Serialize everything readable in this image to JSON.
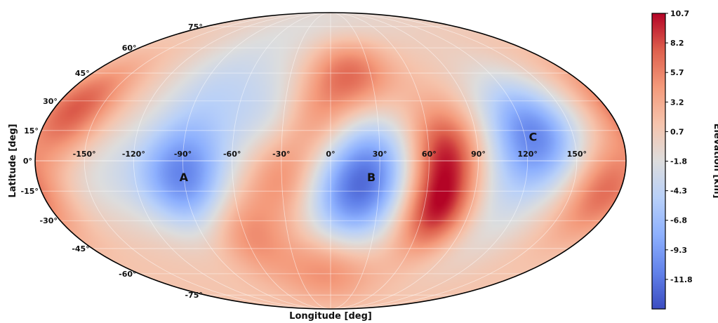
{
  "chart_data": {
    "type": "heatmap",
    "projection": "Mollweide",
    "xlabel": "Longitude [deg]",
    "ylabel": "Latitude [deg]",
    "xlim": [
      -180,
      180
    ],
    "ylim": [
      -90,
      90
    ],
    "grid": true,
    "longitude_ticks": [
      -150,
      -120,
      -90,
      -60,
      -30,
      0,
      30,
      60,
      90,
      120,
      150
    ],
    "longitude_tick_labels": [
      "-150°",
      "-120°",
      "-90°",
      "-60°",
      "-30°",
      "0°",
      "30°",
      "60°",
      "90°",
      "120°",
      "150°"
    ],
    "latitude_ticks": [
      75,
      60,
      45,
      30,
      15,
      0,
      -15,
      -30,
      -45,
      -60,
      -75
    ],
    "latitude_tick_labels": [
      "75°",
      "60°",
      "45°",
      "30°",
      "15°",
      "0°",
      "-15°",
      "-30°",
      "-45°",
      "-60°",
      "-75°"
    ],
    "colormap": "coolwarm",
    "colorbar": {
      "label": "Elevation [km]",
      "min": -14.3,
      "max": 10.7,
      "tick_values": [
        10.7,
        8.2,
        5.7,
        3.2,
        0.7,
        -1.8,
        -4.3,
        -6.8,
        -9.3,
        -11.8
      ],
      "tick_labels": [
        "10.7",
        "8.2",
        "5.7",
        "3.2",
        "0.7",
        "-1.8",
        "-4.3",
        "-6.8",
        "-9.3",
        "-11.8"
      ],
      "placement": "right"
    },
    "colors": {
      "low": "#3b4cc0",
      "mid": "#dddddd",
      "high": "#b40426"
    },
    "regions": [
      {
        "label": "A",
        "lon": -90,
        "lat": -8
      },
      {
        "label": "B",
        "lon": 25,
        "lat": -8
      },
      {
        "label": "C",
        "lon": 125,
        "lat": 12
      }
    ],
    "features": [
      {
        "kind": "basin",
        "lon": -90,
        "lat": -8,
        "elevation_km": -12
      },
      {
        "kind": "basin",
        "lon": 25,
        "lat": -2,
        "elevation_km": -9
      },
      {
        "kind": "basin",
        "lon": 10,
        "lat": -22,
        "elevation_km": -8
      },
      {
        "kind": "basin",
        "lon": 125,
        "lat": 12,
        "elevation_km": -12
      },
      {
        "kind": "basin",
        "lon": -35,
        "lat": 18,
        "elevation_km": -5
      },
      {
        "kind": "basin",
        "lon": -80,
        "lat": 38,
        "elevation_km": -4
      },
      {
        "kind": "basin",
        "lon": -140,
        "lat": -5,
        "elevation_km": -3
      },
      {
        "kind": "basin",
        "lon": 95,
        "lat": -28,
        "elevation_km": -4
      },
      {
        "kind": "basin",
        "lon": 0,
        "lat": 72,
        "elevation_km": -3
      },
      {
        "kind": "highland",
        "lon": 70,
        "lat": -25,
        "elevation_km": 10.5
      },
      {
        "kind": "highland",
        "lon": 70,
        "lat": 5,
        "elevation_km": 8
      },
      {
        "kind": "highland",
        "lon": 15,
        "lat": 45,
        "elevation_km": 7
      },
      {
        "kind": "highland",
        "lon": -165,
        "lat": 25,
        "elevation_km": 7
      },
      {
        "kind": "highland",
        "lon": -30,
        "lat": -5,
        "elevation_km": 6
      },
      {
        "kind": "highland",
        "lon": -10,
        "lat": 20,
        "elevation_km": 5
      },
      {
        "kind": "highland",
        "lon": 170,
        "lat": -15,
        "elevation_km": 6
      },
      {
        "kind": "highland",
        "lon": -60,
        "lat": -35,
        "elevation_km": 5
      },
      {
        "kind": "highland",
        "lon": 0,
        "lat": -55,
        "elevation_km": 5
      }
    ]
  }
}
